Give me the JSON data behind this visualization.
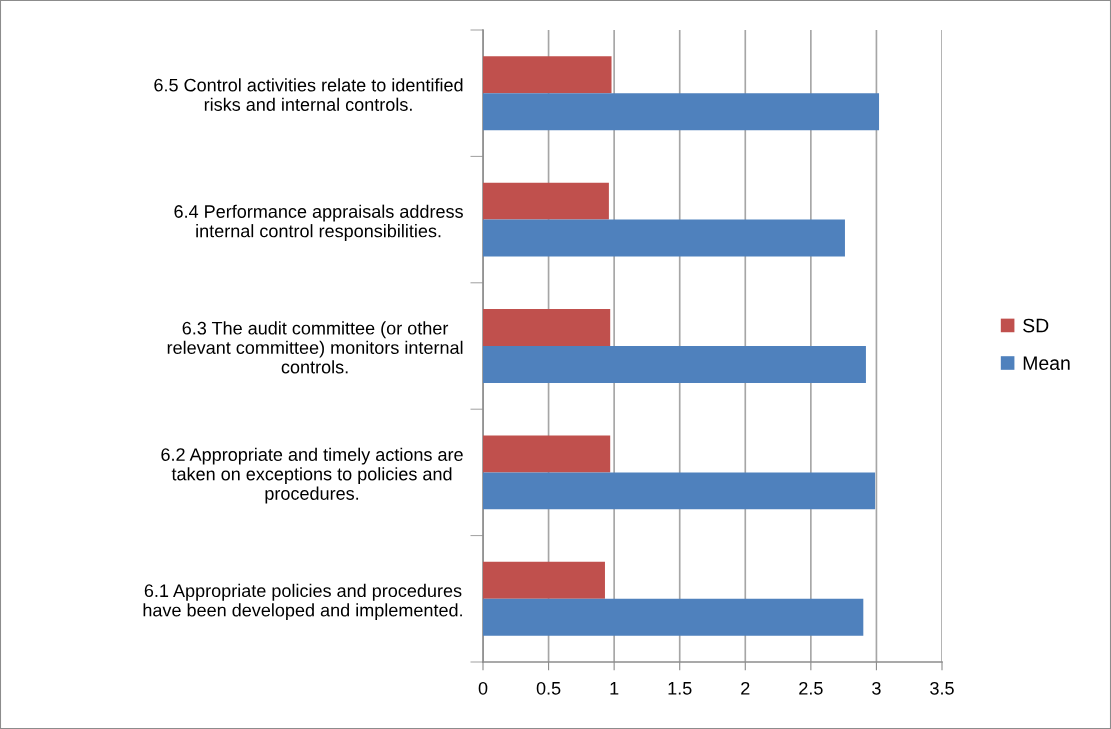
{
  "chart_data": {
    "type": "bar",
    "orientation": "horizontal",
    "categories": [
      "6.5 Control activities relate to identified\nrisks and internal controls.",
      "6.4 Performance appraisals address\ninternal control responsibilities.",
      "6.3 The audit committee (or other\nrelevant committee) monitors internal\ncontrols.",
      "6.2 Appropriate and timely actions are\ntaken on exceptions to policies and\nprocedures.",
      "6.1 Appropriate policies and procedures\nhave been developed and implemented."
    ],
    "series": [
      {
        "name": "SD",
        "color": "#c0504d",
        "values": [
          0.98,
          0.96,
          0.97,
          0.97,
          0.93
        ]
      },
      {
        "name": "Mean",
        "color": "#4f81bd",
        "values": [
          3.02,
          2.76,
          2.92,
          2.99,
          2.9
        ]
      }
    ],
    "xlim": [
      0,
      3.5
    ],
    "xticks": [
      0,
      0.5,
      1,
      1.5,
      2,
      2.5,
      3,
      3.5
    ],
    "grid": "x",
    "legend": "right"
  }
}
